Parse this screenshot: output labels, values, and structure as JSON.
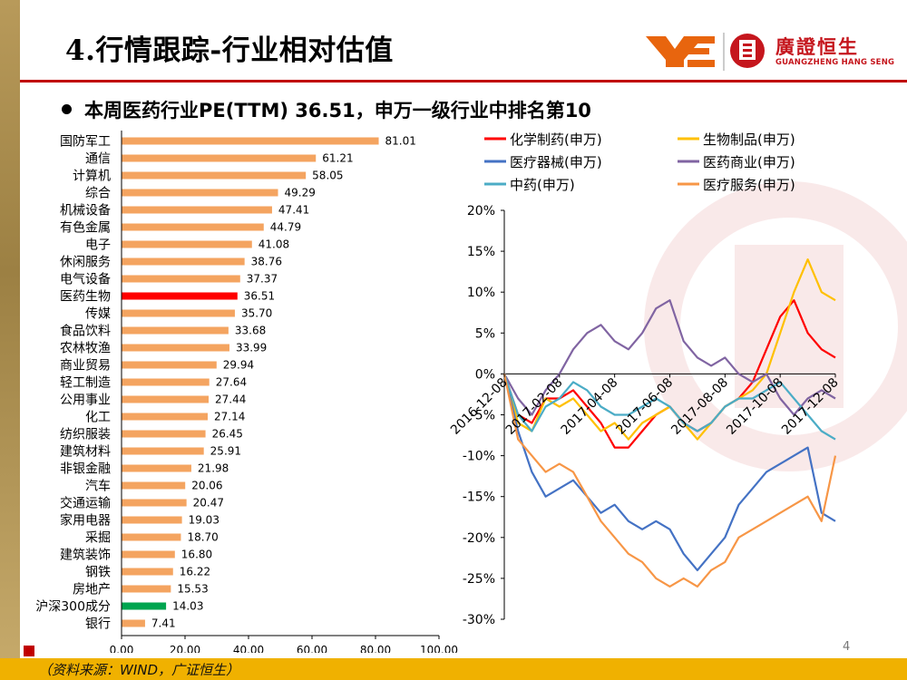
{
  "header": {
    "title": "4.行情跟踪-行业相对估值",
    "logo_cn": "廣證恒生",
    "logo_en": "GUANGZHENG HANG SENG"
  },
  "bullet_text": "本周医药行业PE(TTM) 36.51，申万一级行业中排名第10",
  "source_note": "（资料来源：WIND，广证恒生）",
  "page_number": "4",
  "colors": {
    "accent_red": "#c00000",
    "bar_default": "#f4a460",
    "bar_highlight": "#ff0000",
    "bar_benchmark": "#00a550",
    "footer_gold": "#f0b100"
  },
  "chart_data": [
    {
      "type": "bar",
      "orientation": "horizontal",
      "title": "",
      "categories": [
        "国防军工",
        "通信",
        "计算机",
        "综合",
        "机械设备",
        "有色金属",
        "电子",
        "休闲服务",
        "电气设备",
        "医药生物",
        "传媒",
        "食品饮料",
        "农林牧渔",
        "商业贸易",
        "轻工制造",
        "公用事业",
        "化工",
        "纺织服装",
        "建筑材料",
        "非银金融",
        "汽车",
        "交通运输",
        "家用电器",
        "采掘",
        "建筑装饰",
        "钢铁",
        "房地产",
        "沪深300成分",
        "银行"
      ],
      "values": [
        81.01,
        61.21,
        58.05,
        49.29,
        47.41,
        44.79,
        41.08,
        38.76,
        37.37,
        36.51,
        35.7,
        33.68,
        33.99,
        29.94,
        27.64,
        27.44,
        27.14,
        26.45,
        25.91,
        21.98,
        20.06,
        20.47,
        19.03,
        18.7,
        16.8,
        16.22,
        15.53,
        14.03,
        7.41
      ],
      "value_labels": [
        "81.01",
        "61.21",
        "58.05",
        "49.29",
        "47.41",
        "44.79",
        "41.08",
        "38.76",
        "37.37",
        "36.51",
        "35.70",
        "33.68",
        "33.99",
        "29.94",
        "27.64",
        "27.44",
        "27.14",
        "26.45",
        "25.91",
        "21.98",
        "20.06",
        "20.47",
        "19.03",
        "18.70",
        "16.80",
        "16.22",
        "15.53",
        "14.03",
        "7.41"
      ],
      "highlight": "医药生物",
      "benchmark": "沪深300成分",
      "xlim": [
        0,
        100
      ],
      "xticks": [
        "0.00",
        "20.00",
        "40.00",
        "60.00",
        "80.00",
        "100.00"
      ],
      "grid": false
    },
    {
      "type": "line",
      "title": "",
      "ylim": [
        -30,
        20
      ],
      "yticks": [
        "20%",
        "15%",
        "10%",
        "5%",
        "0%",
        "-5%",
        "-10%",
        "-15%",
        "-20%",
        "-25%",
        "-30%"
      ],
      "xticks": [
        "2016-12-08",
        "2017-02-08",
        "2017-04-08",
        "2017-06-08",
        "2017-08-08",
        "2017-10-08",
        "2017-12-08"
      ],
      "legend_position": "top",
      "series": [
        {
          "name": "化学制药(申万)",
          "color": "#ff0000",
          "values": [
            0,
            -5,
            -6,
            -3,
            -3,
            -2,
            -4,
            -6,
            -9,
            -9,
            -7,
            -5,
            -4,
            -6,
            -7,
            -6,
            -4,
            -3,
            -1,
            3,
            7,
            9,
            5,
            3,
            2
          ]
        },
        {
          "name": "生物制品(申万)",
          "color": "#ffc000",
          "values": [
            0,
            -6,
            -7,
            -3,
            -4,
            -3,
            -5,
            -7,
            -6,
            -8,
            -6,
            -5,
            -4,
            -6,
            -8,
            -6,
            -4,
            -3,
            -2,
            0,
            5,
            10,
            14,
            10,
            9
          ]
        },
        {
          "name": "医疗器械(申万)",
          "color": "#4472c4",
          "values": [
            0,
            -7,
            -12,
            -15,
            -14,
            -13,
            -15,
            -17,
            -16,
            -18,
            -19,
            -18,
            -19,
            -22,
            -24,
            -22,
            -20,
            -16,
            -14,
            -12,
            -11,
            -10,
            -9,
            -17,
            -18
          ]
        },
        {
          "name": "医药商业(申万)",
          "color": "#8064a2",
          "values": [
            0,
            -3,
            -5,
            -2,
            0,
            3,
            5,
            6,
            4,
            3,
            5,
            8,
            9,
            4,
            2,
            1,
            2,
            0,
            -1,
            0,
            -3,
            -5,
            -3,
            -2,
            -3
          ]
        },
        {
          "name": "中药(申万)",
          "color": "#4bacc6",
          "values": [
            0,
            -5,
            -7,
            -4,
            -3,
            -1,
            -2,
            -4,
            -5,
            -5,
            -4,
            -3,
            -4,
            -6,
            -7,
            -6,
            -4,
            -3,
            -3,
            -2,
            -1,
            -3,
            -5,
            -7,
            -8
          ]
        },
        {
          "name": "医疗服务(申万)",
          "color": "#f79646",
          "values": [
            0,
            -8,
            -10,
            -12,
            -11,
            -12,
            -15,
            -18,
            -20,
            -22,
            -23,
            -25,
            -26,
            -25,
            -26,
            -24,
            -23,
            -20,
            -19,
            -18,
            -17,
            -16,
            -15,
            -18,
            -10
          ]
        }
      ]
    }
  ]
}
